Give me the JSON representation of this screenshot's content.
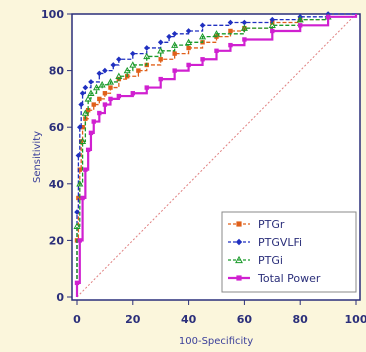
{
  "chart_data": {
    "type": "line",
    "xlabel": "100-Specificity",
    "ylabel": "Sensitivity",
    "xlim": [
      0,
      100
    ],
    "ylim": [
      0,
      100
    ],
    "x_ticks": [
      "0",
      "20",
      "40",
      "60",
      "80",
      "100"
    ],
    "y_ticks": [
      "0",
      "20",
      "40",
      "60",
      "80",
      "100"
    ],
    "grid": false,
    "legend_position": "bottom-right",
    "reference_line": {
      "x": [
        0,
        100
      ],
      "y": [
        0,
        100
      ],
      "color": "#e08080",
      "style": "dotted"
    },
    "series": [
      {
        "name": "PTGr",
        "color": "#e0601a",
        "marker": "square",
        "x": [
          0,
          0,
          0.5,
          1,
          1.5,
          2,
          3,
          4,
          6,
          8,
          10,
          12,
          15,
          18,
          22,
          25,
          30,
          35,
          40,
          45,
          50,
          55,
          60,
          70,
          80,
          90,
          100
        ],
        "y": [
          0,
          20,
          35,
          45,
          55,
          60,
          63,
          66,
          68,
          70,
          72,
          74,
          77,
          78,
          80,
          82,
          84,
          86,
          88,
          90,
          92,
          94,
          95,
          97,
          98,
          99,
          100
        ]
      },
      {
        "name": "PTGVLFi",
        "color": "#2030c0",
        "marker": "diamond",
        "x": [
          0,
          0,
          0.5,
          1,
          1.5,
          2,
          3,
          5,
          8,
          10,
          13,
          15,
          20,
          25,
          30,
          33,
          35,
          40,
          45,
          55,
          60,
          70,
          80,
          90,
          100
        ],
        "y": [
          0,
          30,
          50,
          60,
          68,
          72,
          74,
          76,
          79,
          80,
          82,
          84,
          86,
          88,
          90,
          92,
          93,
          94,
          96,
          97,
          97,
          98,
          99,
          100,
          100
        ]
      },
      {
        "name": "PTGi",
        "color": "#1a9a2a",
        "marker": "triangle",
        "x": [
          0,
          0,
          1,
          2,
          3,
          4,
          5,
          7,
          9,
          12,
          15,
          18,
          20,
          25,
          30,
          35,
          40,
          45,
          50,
          60,
          70,
          80,
          90,
          100
        ],
        "y": [
          0,
          25,
          40,
          55,
          65,
          70,
          72,
          74,
          75,
          76,
          78,
          80,
          82,
          85,
          87,
          89,
          90,
          92,
          93,
          95,
          96,
          98,
          99,
          100
        ]
      },
      {
        "name": "Total Power",
        "color": "#d020d0",
        "marker": "square",
        "x": [
          0,
          0,
          1,
          2,
          3,
          4,
          5,
          6,
          8,
          10,
          12,
          15,
          20,
          25,
          30,
          35,
          40,
          45,
          50,
          55,
          60,
          70,
          80,
          90,
          100
        ],
        "y": [
          0,
          5,
          20,
          35,
          45,
          52,
          58,
          62,
          65,
          68,
          70,
          71,
          72,
          74,
          77,
          80,
          82,
          84,
          87,
          89,
          91,
          94,
          96,
          99,
          100
        ]
      }
    ]
  }
}
